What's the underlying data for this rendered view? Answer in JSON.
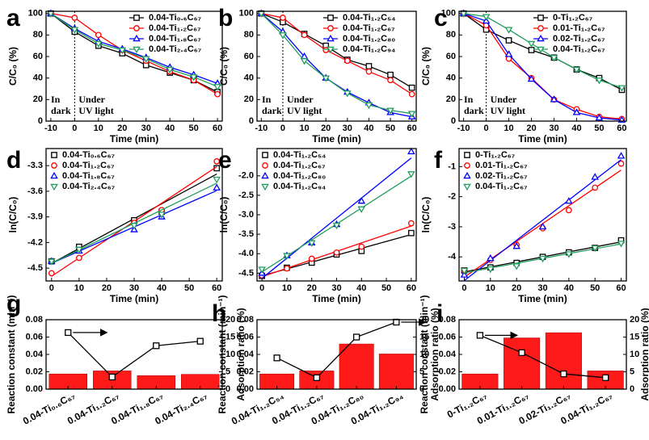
{
  "chart_data": [
    {
      "type": "line",
      "label": "a",
      "xlabel": "Time (min)",
      "ylabel": "C/C₀ (%)",
      "legend": "upper right",
      "annotations": [
        "In",
        "dark",
        "Under",
        "UV light"
      ],
      "divider_x": 0,
      "x": [
        -10,
        0,
        10,
        20,
        30,
        40,
        50,
        60
      ],
      "xlim": [
        -12,
        62
      ],
      "xticks": [
        -10,
        0,
        10,
        20,
        30,
        40,
        50,
        60
      ],
      "ylim": [
        0,
        102
      ],
      "yticks": [
        0,
        20,
        40,
        60,
        80,
        100
      ],
      "series": [
        {
          "name": "0.04-Ti₀.₆C₆₇",
          "color": "#000000",
          "marker": "square",
          "values": [
            100,
            83,
            70,
            63,
            52,
            45,
            38,
            27
          ]
        },
        {
          "name": "0.04-Ti₁.₂C₆₇",
          "color": "#ff0000",
          "marker": "circle",
          "values": [
            100,
            96,
            80,
            66,
            56,
            46,
            38,
            25
          ]
        },
        {
          "name": "0.04-Ti₁.₈C₆₇",
          "color": "#0000ff",
          "marker": "triangle",
          "values": [
            100,
            86,
            74,
            67,
            59,
            50,
            43,
            35
          ]
        },
        {
          "name": "0.04-Ti₂.₄C₆₇",
          "color": "#219e5e",
          "marker": "down",
          "values": [
            100,
            85,
            72,
            66,
            58,
            48,
            41,
            32
          ]
        }
      ]
    },
    {
      "type": "line",
      "label": "b",
      "xlabel": "Time (min)",
      "ylabel": "C/C₀ (%)",
      "legend": "upper right",
      "annotations": [
        "In",
        "dark",
        "Under",
        "UV light"
      ],
      "divider_x": 0,
      "x": [
        -10,
        0,
        10,
        20,
        30,
        40,
        50,
        60
      ],
      "xlim": [
        -12,
        62
      ],
      "xticks": [
        -10,
        0,
        10,
        20,
        30,
        40,
        50,
        60
      ],
      "ylim": [
        0,
        102
      ],
      "yticks": [
        0,
        20,
        40,
        60,
        80,
        100
      ],
      "series": [
        {
          "name": "0.04-Ti₁.₂C₅₄",
          "color": "#000000",
          "marker": "square",
          "values": [
            100,
            92,
            81,
            70,
            57,
            51,
            43,
            31
          ]
        },
        {
          "name": "0.04-Ti₁.₂C₆₇",
          "color": "#ff0000",
          "marker": "circle",
          "values": [
            100,
            96,
            80,
            66,
            56,
            46,
            38,
            25
          ]
        },
        {
          "name": "0.04-Ti₁.₂C₈₀",
          "color": "#0000ff",
          "marker": "triangle",
          "values": [
            100,
            83,
            60,
            40,
            27,
            17,
            8,
            4
          ]
        },
        {
          "name": "0.04-Ti₁.₂C₉₄",
          "color": "#219e5e",
          "marker": "down",
          "values": [
            100,
            80,
            56,
            40,
            26,
            15,
            10,
            7
          ]
        }
      ]
    },
    {
      "type": "line",
      "label": "c",
      "xlabel": "Time (min)",
      "ylabel": "C/C₀ (%)",
      "legend": "upper right",
      "annotations": [
        "In",
        "dark",
        "Under",
        "UV light"
      ],
      "divider_x": 0,
      "x": [
        -10,
        0,
        10,
        20,
        30,
        40,
        50,
        60
      ],
      "xlim": [
        -12,
        62
      ],
      "xticks": [
        -10,
        0,
        10,
        20,
        30,
        40,
        50,
        60
      ],
      "ylim": [
        0,
        102
      ],
      "yticks": [
        0,
        20,
        40,
        60,
        80,
        100
      ],
      "series": [
        {
          "name": "0-Ti₁.₂C₆₇",
          "color": "#000000",
          "marker": "square",
          "values": [
            100,
            85,
            75,
            66,
            59,
            48,
            40,
            29
          ]
        },
        {
          "name": "0.01-Ti₁.₂C₆₇",
          "color": "#ff0000",
          "marker": "circle",
          "values": [
            100,
            89,
            58,
            40,
            20,
            11,
            4,
            2
          ]
        },
        {
          "name": "0.02-Ti₁.₂C₆₇",
          "color": "#0000ff",
          "marker": "triangle",
          "values": [
            100,
            93,
            62,
            39,
            20,
            8,
            3,
            1
          ]
        },
        {
          "name": "0.04-Ti₁.₂C₆₇",
          "color": "#219e5e",
          "marker": "down",
          "values": [
            100,
            97,
            85,
            72,
            59,
            48,
            38,
            31
          ]
        }
      ]
    },
    {
      "type": "scatter",
      "label": "d",
      "xlabel": "Time (min)",
      "ylabel": "ln(C/C₀)",
      "legend": "upper left",
      "x": [
        0,
        10,
        30,
        40,
        60
      ],
      "xlim": [
        -2,
        62
      ],
      "xticks": [
        0,
        10,
        20,
        30,
        40,
        50,
        60
      ],
      "ylim": [
        -4.65,
        -3.1
      ],
      "yticks": [
        -4.5,
        -4.2,
        -3.9,
        -3.6,
        -3.3
      ],
      "series": [
        {
          "name": "0.04-Ti₀.₆C₆₇",
          "color": "#000000",
          "marker": "square",
          "values": [
            -4.42,
            -4.25,
            -3.94,
            -3.84,
            -3.33
          ]
        },
        {
          "name": "0.04-Ti₁.₂C₆₇",
          "color": "#ff0000",
          "marker": "circle",
          "values": [
            -4.56,
            -4.38,
            -3.97,
            -3.82,
            -3.25
          ]
        },
        {
          "name": "0.04-Ti₁.₈C₆₇",
          "color": "#0000ff",
          "marker": "triangle",
          "values": [
            -4.42,
            -4.3,
            -4.05,
            -3.9,
            -3.56
          ]
        },
        {
          "name": "0.04-Ti₂.₄C₆₇",
          "color": "#219e5e",
          "marker": "down",
          "values": [
            -4.42,
            -4.28,
            -4.0,
            -3.87,
            -3.46
          ]
        }
      ]
    },
    {
      "type": "scatter",
      "label": "e",
      "xlabel": "Time (min)",
      "ylabel": "ln(C/C₀)",
      "legend": "upper left",
      "x": [
        0,
        10,
        20,
        30,
        40,
        60
      ],
      "xlim": [
        -2,
        62
      ],
      "xticks": [
        0,
        10,
        20,
        30,
        40,
        50,
        60
      ],
      "ylim": [
        -4.7,
        -1.3
      ],
      "yticks": [
        {
          "value": -4.5,
          "label": "-4.5"
        },
        {
          "value": -4,
          "label": "-4.0"
        },
        {
          "value": -3.5,
          "label": "-3.5"
        },
        {
          "value": -3,
          "label": "-3.0"
        },
        {
          "value": -2.5,
          "label": "-2.5"
        },
        {
          "value": -2,
          "label": "-2.0"
        }
      ],
      "series": [
        {
          "name": "0.04-Ti₁.₂C₅₄",
          "color": "#000000",
          "marker": "square",
          "values": [
            -4.57,
            -4.36,
            -4.23,
            -4.02,
            -3.93,
            -3.47
          ]
        },
        {
          "name": "0.04-Ti₁.₂C₆₇",
          "color": "#ff0000",
          "marker": "circle",
          "values": [
            -4.56,
            -4.38,
            -4.13,
            -3.97,
            -3.82,
            -3.22
          ]
        },
        {
          "name": "0.04-Ti₁.₂C₈₀",
          "color": "#0000ff",
          "marker": "triangle",
          "values": [
            -4.5,
            -4.05,
            -3.72,
            -3.25,
            -2.65,
            -1.38
          ]
        },
        {
          "name": "0.04-Ti₁.₂C₉₄",
          "color": "#219e5e",
          "marker": "down",
          "values": [
            -4.4,
            -4.05,
            -3.72,
            -3.27,
            -2.85,
            -1.95
          ]
        }
      ]
    },
    {
      "type": "scatter",
      "label": "f",
      "xlabel": "Time (min)",
      "ylabel": "ln(C/C₀)",
      "legend": "upper left",
      "x": [
        0,
        10,
        20,
        30,
        40,
        50,
        60
      ],
      "xlim": [
        -2,
        62
      ],
      "xticks": [
        0,
        10,
        20,
        30,
        40,
        50,
        60
      ],
      "ylim": [
        -4.8,
        -0.4
      ],
      "yticks": [
        -4,
        -3,
        -2,
        -1
      ],
      "series": [
        {
          "name": "0-Ti₁.₂C₆₇",
          "color": "#000000",
          "marker": "square",
          "values": [
            -4.45,
            -4.35,
            -4.2,
            -4.0,
            -3.85,
            -3.7,
            -3.45
          ]
        },
        {
          "name": "0.01-Ti₁.₂C₆₇",
          "color": "#ff0000",
          "marker": "circle",
          "values": [
            -4.45,
            -4.1,
            -3.6,
            -3.05,
            -2.45,
            -1.7,
            -0.9
          ]
        },
        {
          "name": "0.02-Ti₁.₂C₆₇",
          "color": "#0000ff",
          "marker": "triangle",
          "values": [
            -4.6,
            -4.05,
            -3.65,
            -3.0,
            -2.15,
            -1.35,
            -0.65
          ]
        },
        {
          "name": "0.04-Ti₁.₂C₆₇",
          "color": "#219e5e",
          "marker": "down",
          "values": [
            -4.45,
            -4.4,
            -4.3,
            -4.05,
            -3.9,
            -3.7,
            -3.55
          ]
        }
      ]
    },
    {
      "type": "bar",
      "label": "g",
      "ylabel": "Reaction constant (min⁻¹)",
      "y2label": "Adsorption ratio (%)",
      "categories": [
        "0.04-Ti₀.₆C₆₇",
        "0.04-Ti₁.₂C₆₇",
        "0.04-Ti₁.₈C₆₇",
        "0.04-Ti₂.₄C₆₇"
      ],
      "ylim": [
        0,
        0.08
      ],
      "yticks": [
        {
          "value": 0,
          "label": "0.00"
        },
        0.02,
        0.04,
        0.06,
        0.08
      ],
      "y2lim": [
        0,
        20
      ],
      "y2ticks": [
        0,
        5,
        10,
        15,
        20
      ],
      "series": [
        {
          "color": "#ff1a1a",
          "values": [
            0.0175,
            0.021,
            0.0155,
            0.017
          ]
        },
        {
          "color": "#000000",
          "axis": "y2",
          "marker": "square",
          "values": [
            16.3,
            3.5,
            12.5,
            13.8
          ]
        }
      ]
    },
    {
      "type": "bar",
      "label": "h",
      "ylabel": "Reaction constant (min⁻¹)",
      "y2label": "Adsorption ratio (%)",
      "categories": [
        "0.04-Ti₁.₂C₅₄",
        "0.04-Ti₁.₂C₆₇",
        "0.04-Ti₁.₂C₈₀",
        "0.04-Ti₁.₂C₉₄"
      ],
      "ylim": [
        0,
        0.08
      ],
      "yticks": [
        {
          "value": 0,
          "label": "0.00"
        },
        0.02,
        0.04,
        0.06,
        0.08
      ],
      "y2lim": [
        0,
        20
      ],
      "y2ticks": [
        0,
        5,
        10,
        15,
        20
      ],
      "series": [
        {
          "color": "#ff1a1a",
          "values": [
            0.0175,
            0.021,
            0.052,
            0.0405
          ]
        },
        {
          "color": "#000000",
          "axis": "y2",
          "marker": "square",
          "values": [
            9,
            3.3,
            15,
            19.3
          ]
        }
      ]
    },
    {
      "type": "bar",
      "label": "i",
      "ylabel": "Reaction constant (min⁻¹)",
      "y2label": "Adsorption ratio (%)",
      "categories": [
        "0-Ti₁.₂C₆₇",
        "0.01-Ti₁.₂C₆₇",
        "0.02-Ti₁.₂C₆₇",
        "0.04-Ti₁.₂C₆₇"
      ],
      "ylim": [
        0,
        0.08
      ],
      "yticks": [
        {
          "value": 0,
          "label": "0.00"
        },
        0.02,
        0.04,
        0.06,
        0.08
      ],
      "y2lim": [
        0,
        20
      ],
      "y2ticks": [
        0,
        5,
        10,
        15,
        20
      ],
      "series": [
        {
          "color": "#ff1a1a",
          "values": [
            0.0175,
            0.059,
            0.065,
            0.021
          ]
        },
        {
          "color": "#000000",
          "axis": "y2",
          "marker": "square",
          "values": [
            15.5,
            10.5,
            4.4,
            3.3
          ]
        }
      ]
    }
  ]
}
